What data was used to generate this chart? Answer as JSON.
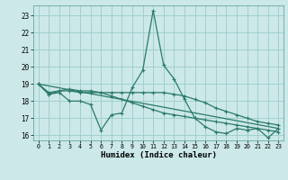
{
  "xlabel": "Humidex (Indice chaleur)",
  "bg_color": "#cce8e8",
  "grid_color": "#99cccc",
  "line_color": "#2a7a6a",
  "xlim": [
    -0.5,
    23.5
  ],
  "ylim": [
    15.7,
    23.6
  ],
  "yticks": [
    16,
    17,
    18,
    19,
    20,
    21,
    22,
    23
  ],
  "xticks": [
    0,
    1,
    2,
    3,
    4,
    5,
    6,
    7,
    8,
    9,
    10,
    11,
    12,
    13,
    14,
    15,
    16,
    17,
    18,
    19,
    20,
    21,
    22,
    23
  ],
  "line1_x": [
    0,
    1,
    2,
    3,
    4,
    5,
    6,
    7,
    8,
    9,
    10,
    11,
    12,
    13,
    14,
    15,
    16,
    17,
    18,
    19,
    20,
    21,
    22,
    23
  ],
  "line1_y": [
    19.0,
    18.4,
    18.5,
    18.0,
    18.0,
    17.8,
    16.3,
    17.2,
    17.3,
    18.8,
    19.8,
    23.3,
    20.1,
    19.3,
    18.1,
    17.0,
    16.5,
    16.2,
    16.1,
    16.4,
    16.3,
    16.4,
    15.85,
    16.4
  ],
  "line2_x": [
    0,
    1,
    2,
    3,
    4,
    5,
    6,
    7,
    8,
    9,
    10,
    11,
    12,
    13,
    14,
    15,
    16,
    17,
    18,
    19,
    20,
    21,
    22,
    23
  ],
  "line2_y": [
    19.0,
    18.4,
    18.6,
    18.6,
    18.5,
    18.5,
    18.5,
    18.5,
    18.5,
    18.5,
    18.5,
    18.5,
    18.5,
    18.4,
    18.3,
    18.1,
    17.9,
    17.6,
    17.4,
    17.2,
    17.0,
    16.8,
    16.7,
    16.6
  ],
  "line3_x": [
    0,
    1,
    2,
    3,
    4,
    5,
    6,
    7,
    8,
    9,
    10,
    11,
    12,
    13,
    14,
    15,
    16,
    17,
    18,
    19,
    20,
    21,
    22,
    23
  ],
  "line3_y": [
    19.0,
    18.5,
    18.6,
    18.7,
    18.6,
    18.6,
    18.5,
    18.3,
    18.1,
    17.9,
    17.7,
    17.5,
    17.3,
    17.2,
    17.1,
    17.0,
    16.9,
    16.8,
    16.7,
    16.6,
    16.5,
    16.4,
    16.3,
    16.2
  ],
  "line4_x": [
    0,
    23
  ],
  "line4_y": [
    19.0,
    16.4
  ]
}
